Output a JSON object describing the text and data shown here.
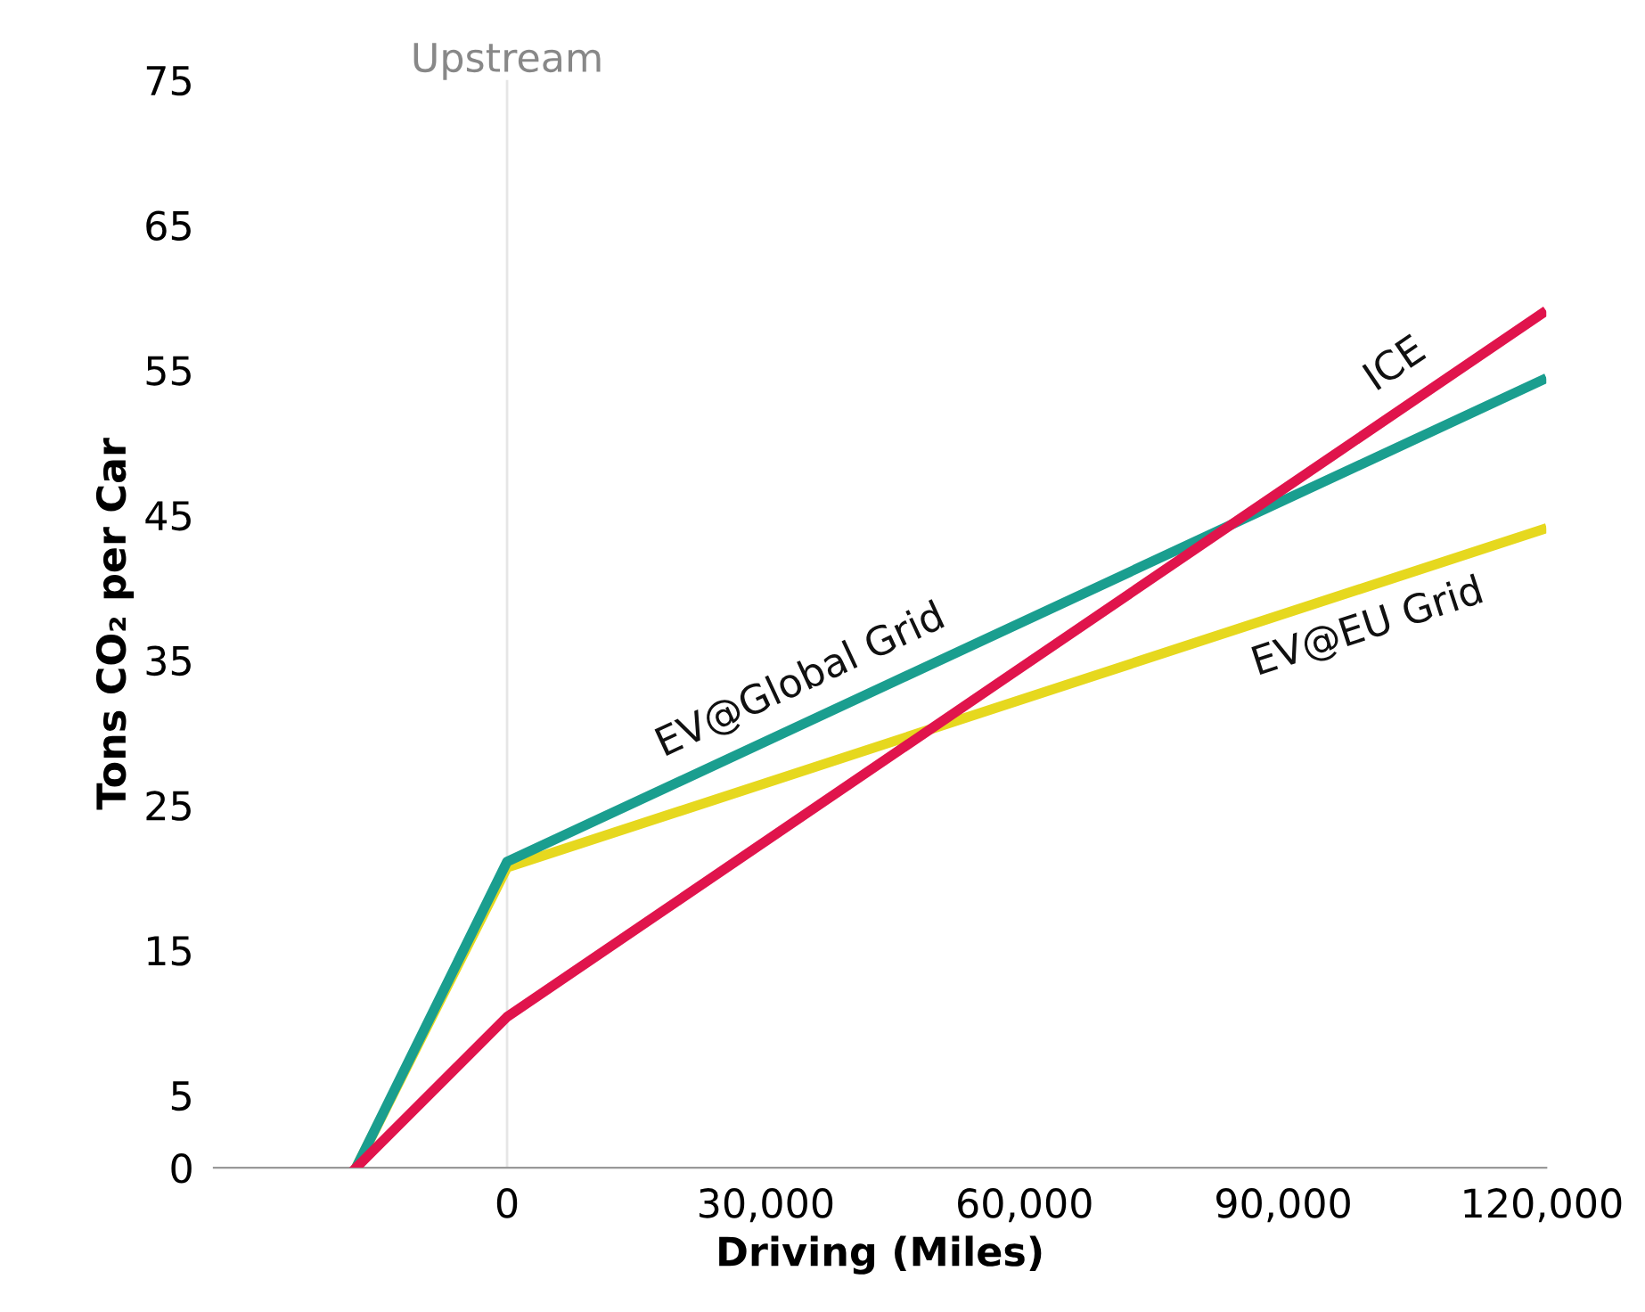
{
  "chart_data": {
    "type": "line",
    "xlabel": "Driving (Miles)",
    "ylabel": "Tons CO₂ per Car",
    "xlim": [
      -34000,
      120500
    ],
    "xticks": [
      0,
      {
        "value": 30000,
        "label": "30,000"
      },
      {
        "value": 60000,
        "label": "60,000"
      },
      {
        "value": 90000,
        "label": "90,000"
      },
      {
        "value": 120000,
        "label": "120,000"
      }
    ],
    "ylim": [
      0,
      75
    ],
    "yticks": [
      0,
      5,
      15,
      25,
      35,
      45,
      55,
      65,
      75
    ],
    "x": [
      -17500,
      0,
      120000
    ],
    "series": [
      {
        "name": "ICE",
        "color": "#e0144c",
        "values": [
          0,
          10.4,
          58.9
        ]
      },
      {
        "name": "EV@Global Grid",
        "color": "#1a9e8f",
        "values": [
          0,
          21.1,
          54.3
        ]
      },
      {
        "name": "EV@EU Grid",
        "color": "#e6d81e",
        "values": [
          0,
          20.7,
          44.0
        ]
      }
    ],
    "ref_lines": [
      {
        "axis": "x",
        "value": 0,
        "label": "Upstream",
        "color": "#e6e6e6"
      }
    ],
    "grid": false,
    "legend": false,
    "marker": "none",
    "line_style": "solid"
  }
}
